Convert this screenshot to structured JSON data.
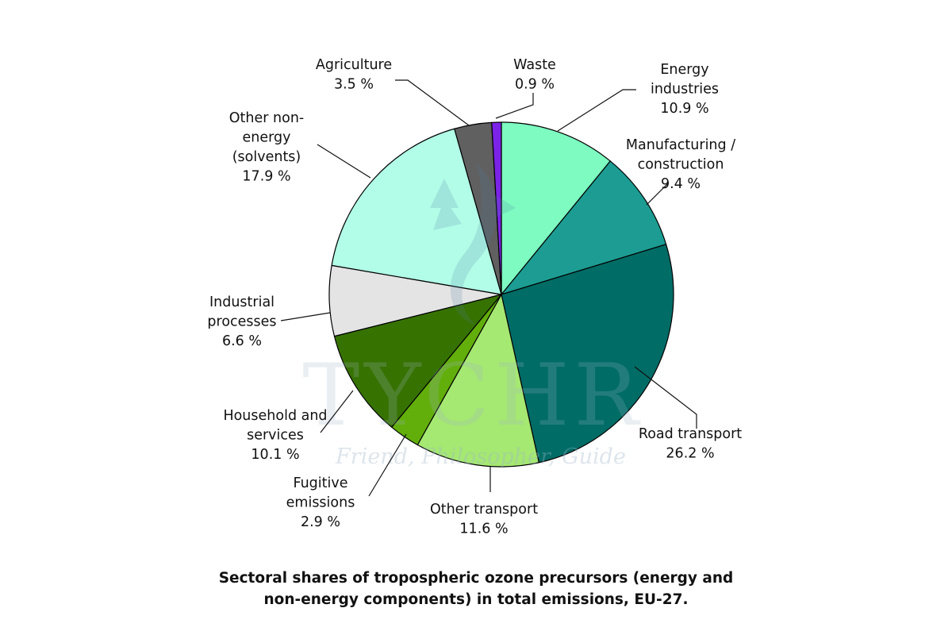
{
  "chart_data": {
    "type": "pie",
    "title": "Sectoral shares of tropospheric ozone precursors (energy and non-energy components) in total emissions, EU-27.",
    "unit": "%",
    "slices": [
      {
        "name": "Energy industries",
        "value": 10.9,
        "color": "#7dfbc0",
        "label_lines": [
          "Energy",
          "industries",
          "10.9 %"
        ]
      },
      {
        "name": "Manufacturing / construction",
        "value": 9.4,
        "color": "#1c9c92",
        "label_lines": [
          "Manufacturing /",
          "construction",
          "9.4 %"
        ]
      },
      {
        "name": "Road transport",
        "value": 26.2,
        "color": "#006c66",
        "label_lines": [
          "Road transport",
          "26.2 %"
        ]
      },
      {
        "name": "Other transport",
        "value": 11.6,
        "color": "#a5e872",
        "label_lines": [
          "Other transport",
          "11.6 %"
        ]
      },
      {
        "name": "Fugitive emissions",
        "value": 2.9,
        "color": "#62ae0b",
        "label_lines": [
          "Fugitive",
          "emissions",
          "2.9 %"
        ]
      },
      {
        "name": "Household and services",
        "value": 10.1,
        "color": "#367200",
        "label_lines": [
          "Household and",
          "services",
          "10.1 %"
        ]
      },
      {
        "name": "Industrial processes",
        "value": 6.6,
        "color": "#e4e4e4",
        "label_lines": [
          "Industrial",
          "processes",
          "6.6 %"
        ]
      },
      {
        "name": "Other non-energy (solvents)",
        "value": 17.9,
        "color": "#b2fde7",
        "label_lines": [
          "Other non-",
          "energy",
          "(solvents)",
          "17.9 %"
        ]
      },
      {
        "name": "Agriculture",
        "value": 3.5,
        "color": "#606060",
        "label_lines": [
          "Agriculture",
          "3.5 %"
        ]
      },
      {
        "name": "Waste",
        "value": 0.9,
        "color": "#7b23e6",
        "label_lines": [
          "Waste",
          "0.9 %"
        ]
      }
    ],
    "start_angle_deg": 0,
    "direction": "clockwise"
  },
  "caption": {
    "line1": "Sectoral shares of tropospheric ozone precursors (energy and",
    "line2": "non-energy components) in total emissions, EU-27."
  },
  "watermark": {
    "brand": "TYCHR",
    "tagline": "Friend, Philosopher, Guide"
  }
}
